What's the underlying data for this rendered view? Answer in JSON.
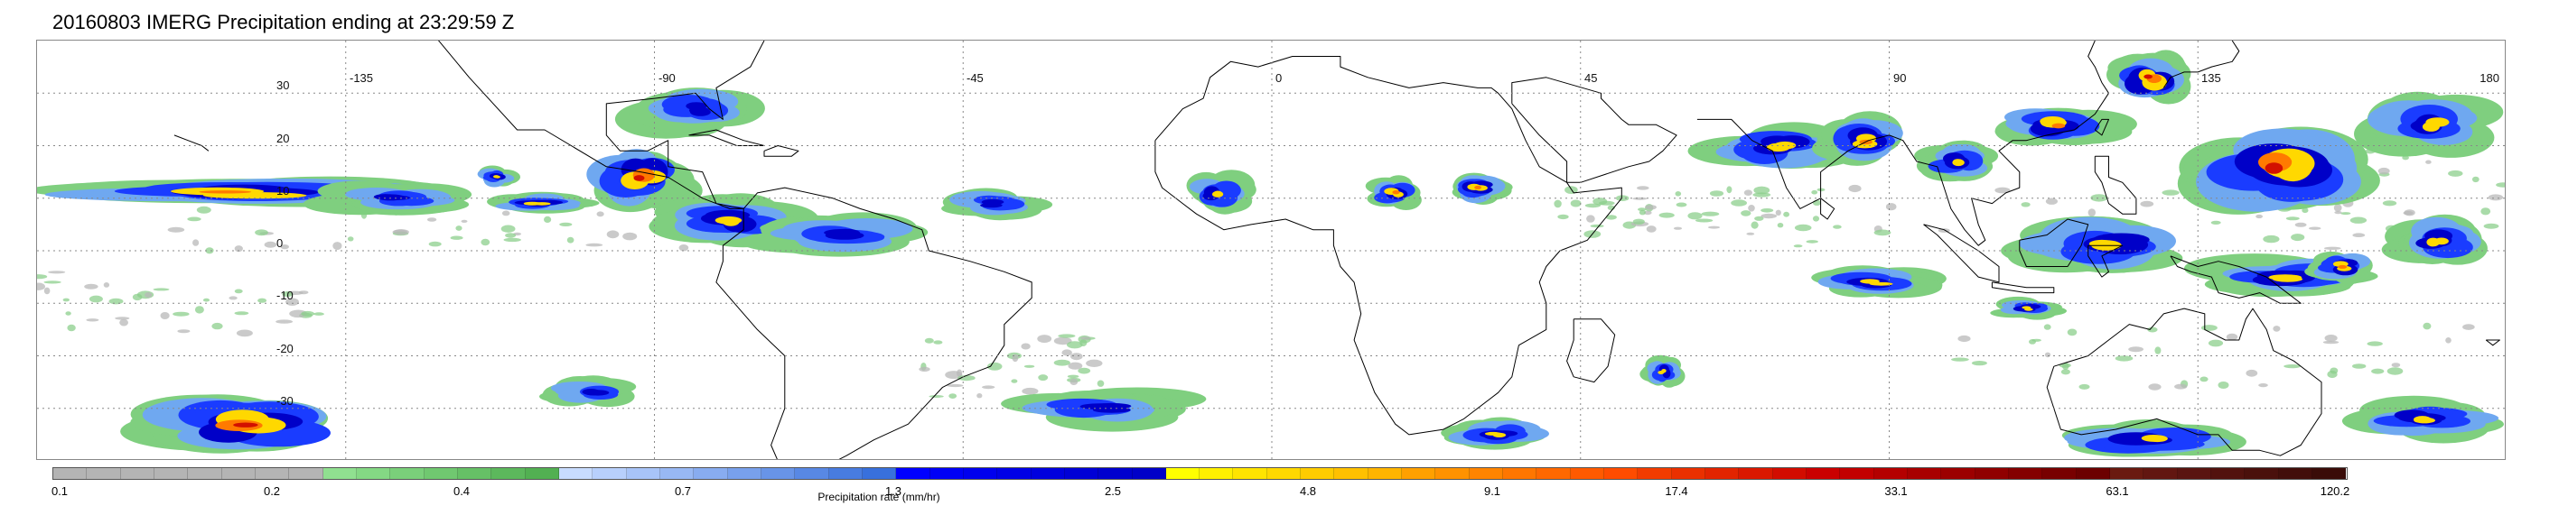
{
  "title": "20160803 IMERG Precipitation ending at 23:29:59 Z",
  "map": {
    "lon_range": [
      -180,
      180
    ],
    "lat_range": [
      -40,
      40
    ],
    "lon_labels": [
      {
        "lon": -135,
        "text": "-135"
      },
      {
        "lon": -90,
        "text": "-90"
      },
      {
        "lon": -45,
        "text": "-45"
      },
      {
        "lon": 0,
        "text": "0"
      },
      {
        "lon": 45,
        "text": "45"
      },
      {
        "lon": 90,
        "text": "90"
      },
      {
        "lon": 135,
        "text": "135"
      },
      {
        "lon": 180,
        "text": "180"
      }
    ],
    "lat_labels": [
      {
        "lat": 30,
        "text": "30"
      },
      {
        "lat": 20,
        "text": "20"
      },
      {
        "lat": 10,
        "text": "10"
      },
      {
        "lat": 0,
        "text": "0"
      },
      {
        "lat": -10,
        "text": "-10"
      },
      {
        "lat": -20,
        "text": "-20"
      },
      {
        "lat": -30,
        "text": "-30"
      }
    ],
    "grid_lines": "dotted",
    "coastline_color": "#000000",
    "rain_systems": [
      {
        "lon": -150,
        "lat": 11,
        "w": 30,
        "h": 3,
        "max": 5
      },
      {
        "lon": -128,
        "lat": 10,
        "w": 12,
        "h": 3,
        "max": 3
      },
      {
        "lon": -113,
        "lat": 14,
        "w": 3,
        "h": 2,
        "max": 4
      },
      {
        "lon": -107,
        "lat": 9,
        "w": 8,
        "h": 2,
        "max": 4
      },
      {
        "lon": -92,
        "lat": 14,
        "w": 8,
        "h": 6,
        "max": 6
      },
      {
        "lon": -84,
        "lat": 27,
        "w": 10,
        "h": 5,
        "max": 3
      },
      {
        "lon": -78,
        "lat": 6,
        "w": 12,
        "h": 5,
        "max": 4
      },
      {
        "lon": -63,
        "lat": 3,
        "w": 14,
        "h": 4,
        "max": 3
      },
      {
        "lon": -40,
        "lat": 9,
        "w": 8,
        "h": 3,
        "max": 3
      },
      {
        "lon": -8,
        "lat": 11,
        "w": 5,
        "h": 4,
        "max": 4
      },
      {
        "lon": 18,
        "lat": 11,
        "w": 4,
        "h": 3,
        "max": 5
      },
      {
        "lon": 30,
        "lat": 12,
        "w": 5,
        "h": 3,
        "max": 5
      },
      {
        "lon": 74,
        "lat": 20,
        "w": 12,
        "h": 5,
        "max": 4
      },
      {
        "lon": 86,
        "lat": 21,
        "w": 7,
        "h": 5,
        "max": 5
      },
      {
        "lon": 100,
        "lat": 17,
        "w": 6,
        "h": 4,
        "max": 4
      },
      {
        "lon": 115,
        "lat": 24,
        "w": 10,
        "h": 4,
        "max": 5
      },
      {
        "lon": 128,
        "lat": 33,
        "w": 6,
        "h": 5,
        "max": 6
      },
      {
        "lon": 147,
        "lat": 16,
        "w": 14,
        "h": 9,
        "max": 6
      },
      {
        "lon": 169,
        "lat": 24,
        "w": 10,
        "h": 6,
        "max": 4
      },
      {
        "lon": 88,
        "lat": -6,
        "w": 10,
        "h": 3,
        "max": 4
      },
      {
        "lon": 110,
        "lat": -11,
        "w": 5,
        "h": 2,
        "max": 4
      },
      {
        "lon": 122,
        "lat": 1,
        "w": 14,
        "h": 6,
        "max": 4
      },
      {
        "lon": 148,
        "lat": -5,
        "w": 14,
        "h": 4,
        "max": 4
      },
      {
        "lon": 170,
        "lat": 2,
        "w": 8,
        "h": 5,
        "max": 4
      },
      {
        "lon": 156,
        "lat": -3,
        "w": 5,
        "h": 3,
        "max": 5
      },
      {
        "lon": -150,
        "lat": -33,
        "w": 16,
        "h": 6,
        "max": 6
      },
      {
        "lon": -99,
        "lat": -27,
        "w": 8,
        "h": 3,
        "max": 3
      },
      {
        "lon": -25,
        "lat": -30,
        "w": 14,
        "h": 4,
        "max": 3
      },
      {
        "lon": 33,
        "lat": -35,
        "w": 8,
        "h": 3,
        "max": 4
      },
      {
        "lon": 57,
        "lat": -23,
        "w": 3,
        "h": 3,
        "max": 4
      },
      {
        "lon": 128,
        "lat": -36,
        "w": 14,
        "h": 4,
        "max": 4
      },
      {
        "lon": 168,
        "lat": -32,
        "w": 12,
        "h": 4,
        "max": 4
      }
    ],
    "light_rain_bands": [
      {
        "lon": -160,
        "lat": -10,
        "w": 22,
        "h": 6
      },
      {
        "lon": -120,
        "lat": 4,
        "w": 40,
        "h": 4
      },
      {
        "lon": 95,
        "lat": 6,
        "w": 60,
        "h": 6
      },
      {
        "lon": 140,
        "lat": -20,
        "w": 40,
        "h": 6
      },
      {
        "lon": 60,
        "lat": 8,
        "w": 20,
        "h": 4
      },
      {
        "lon": -40,
        "lat": -22,
        "w": 16,
        "h": 6
      },
      {
        "lon": 170,
        "lat": 10,
        "w": 16,
        "h": 10
      }
    ]
  },
  "colorbar": {
    "segment_colors": [
      "#b4b4b4",
      "#b4b4b4",
      "#b4b4b4",
      "#b4b4b4",
      "#b4b4b4",
      "#b4b4b4",
      "#b4b4b4",
      "#b4b4b4",
      "#90e090",
      "#84d884",
      "#7ad07a",
      "#70c870",
      "#66c066",
      "#5cb85c",
      "#52b052",
      "#c8dcff",
      "#b8d0fc",
      "#a8c4f8",
      "#98b8f4",
      "#88acf0",
      "#78a0ec",
      "#6894e8",
      "#5888e4",
      "#487ce0",
      "#3870dc",
      "#0000ff",
      "#0000f6",
      "#0000ee",
      "#0000e6",
      "#0000de",
      "#0000d6",
      "#0000ce",
      "#0000c8",
      "#ffff00",
      "#fff000",
      "#ffe400",
      "#ffd800",
      "#ffcc00",
      "#ffc000",
      "#ffb400",
      "#ffa000",
      "#ff9200",
      "#ff8400",
      "#ff7600",
      "#ff6800",
      "#ff5a00",
      "#ff4c00",
      "#f23c00",
      "#ea3000",
      "#e22400",
      "#da1800",
      "#d20c00",
      "#ca0000",
      "#c20000",
      "#b40000",
      "#a80000",
      "#9c0000",
      "#900000",
      "#840000",
      "#780000",
      "#6c0000",
      "#6a1a10",
      "#621610",
      "#5a1410",
      "#52120e",
      "#4a100c",
      "#420e0a",
      "#3a0c08"
    ],
    "ticks": [
      {
        "value": "0.1",
        "pos": 0.0
      },
      {
        "value": "0.2",
        "pos": 0.119
      },
      {
        "value": "0.4",
        "pos": 0.222
      },
      {
        "value": "0.7",
        "pos": 0.342
      },
      {
        "value": "1.3",
        "pos": 0.456
      },
      {
        "value": "2.5",
        "pos": 0.575
      },
      {
        "value": "4.8",
        "pos": 0.681
      },
      {
        "value": "9.1",
        "pos": 0.781
      },
      {
        "value": "17.4",
        "pos": 0.881
      },
      {
        "value": "33.1",
        "pos": 1.0
      },
      {
        "value": "63.1",
        "pos": 1.12
      },
      {
        "value": "120.2",
        "pos": 1.245
      }
    ],
    "units_label": "Precipitation rate (mm/hr)"
  }
}
